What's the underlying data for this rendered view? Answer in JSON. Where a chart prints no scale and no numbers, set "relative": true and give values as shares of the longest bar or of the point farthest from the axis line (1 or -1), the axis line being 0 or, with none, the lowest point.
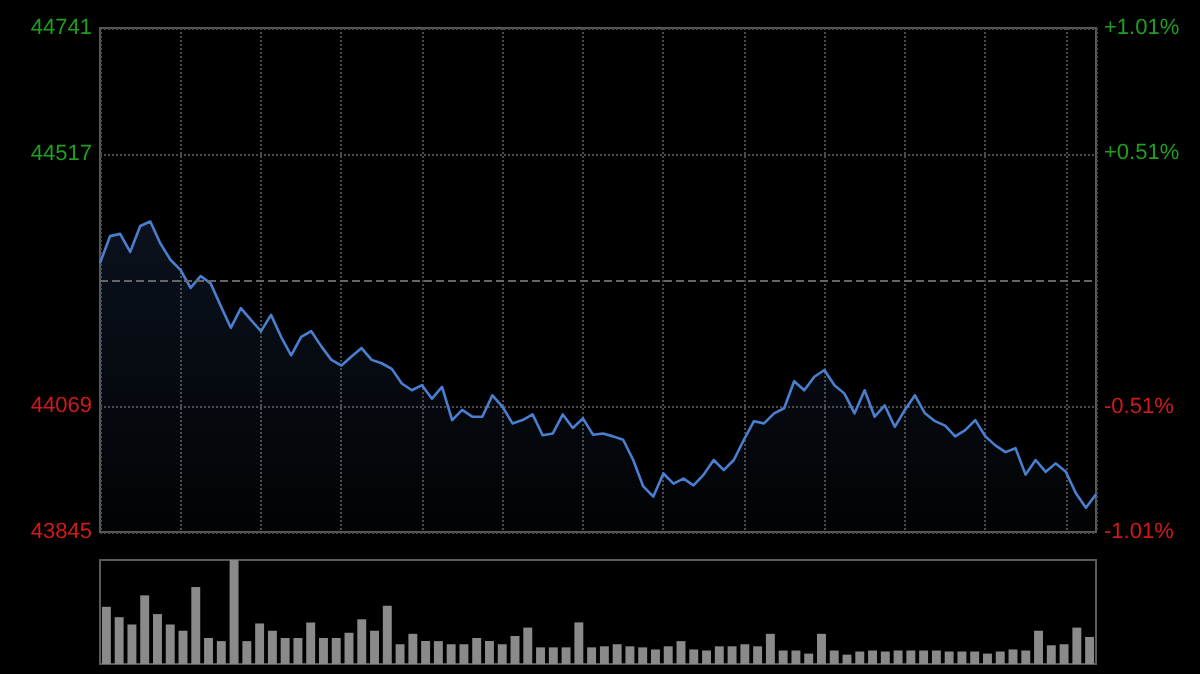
{
  "chart_data": [
    {
      "type": "area",
      "categories": [
        null,
        null,
        null,
        null,
        null,
        null,
        null,
        null,
        null,
        null,
        null,
        null,
        null,
        null,
        null,
        null,
        null,
        null,
        null,
        null,
        null,
        null,
        null,
        null,
        null,
        null,
        null,
        null,
        null,
        null,
        null,
        null,
        null,
        null,
        null,
        null,
        null,
        null,
        null,
        null,
        null,
        null,
        null,
        null,
        null,
        null,
        null,
        null,
        null,
        null,
        null,
        null,
        null,
        null,
        null,
        null,
        null,
        null,
        null,
        null,
        null,
        null,
        null,
        null,
        null,
        null,
        null,
        null,
        null,
        null,
        null,
        null,
        null,
        null,
        null,
        null,
        null,
        null,
        null,
        null,
        null,
        null,
        null,
        null,
        null,
        null,
        null,
        null,
        null,
        null,
        null,
        null,
        null,
        null,
        null,
        null,
        null,
        null,
        null,
        null
      ],
      "series": [
        {
          "color": "#4a7fd0",
          "values": [
            44323,
            44371,
            44375,
            44343,
            44389,
            44397,
            44358,
            44329,
            44311,
            44279,
            44300,
            44287,
            44247,
            44208,
            44243,
            44222,
            44202,
            44231,
            44192,
            44159,
            44192,
            44202,
            44175,
            44151,
            44141,
            44157,
            44172,
            44151,
            44145,
            44135,
            44109,
            44097,
            44106,
            44082,
            44103,
            44044,
            44062,
            44050,
            44050,
            44088,
            44068,
            44038,
            44044,
            44054,
            44017,
            44020,
            44054,
            44030,
            44047,
            44018,
            44020,
            44015,
            44009,
            43973,
            43926,
            43908,
            43949,
            43931,
            43940,
            43928,
            43947,
            43973,
            43955,
            43973,
            44009,
            44042,
            44038,
            44056,
            44065,
            44113,
            44097,
            44121,
            44133,
            44106,
            44091,
            44056,
            44097,
            44050,
            44070,
            44032,
            44062,
            44088,
            44056,
            44042,
            44034,
            44015,
            44026,
            44044,
            44015,
            43999,
            43987,
            43994,
            43947,
            43973,
            43952,
            43967,
            43952,
            43914,
            43888,
            43912
          ]
        }
      ],
      "ylim": [
        43845,
        44741
      ],
      "yticks": [
        43845,
        44069,
        44517,
        44741
      ],
      "y2lim": [
        -1.01,
        1.01
      ],
      "y2ticks": [
        {
          "value": -1.01,
          "label": "-1.01%"
        },
        {
          "value": -0.51,
          "label": "-0.51%"
        },
        {
          "value": 0.51,
          "label": "+0.51%"
        },
        {
          "value": 1.01,
          "label": "+1.01%"
        }
      ],
      "ref_lines": [
        {
          "axis": "y",
          "value": 44293,
          "color": "#666666",
          "line_style": "dashed"
        }
      ],
      "grid": true,
      "tick_labels": "y"
    },
    {
      "type": "bar",
      "relative": true,
      "categories": [
        null,
        null,
        null,
        null,
        null,
        null,
        null,
        null,
        null,
        null,
        null,
        null,
        null,
        null,
        null,
        null,
        null,
        null,
        null,
        null,
        null,
        null,
        null,
        null,
        null,
        null,
        null,
        null,
        null,
        null,
        null,
        null,
        null,
        null,
        null,
        null,
        null,
        null,
        null,
        null,
        null,
        null,
        null,
        null,
        null,
        null,
        null,
        null,
        null,
        null,
        null,
        null,
        null,
        null,
        null,
        null,
        null,
        null,
        null,
        null,
        null,
        null,
        null,
        null,
        null,
        null,
        null,
        null,
        null,
        null,
        null,
        null,
        null,
        null,
        null,
        null,
        null,
        null
      ],
      "values": [
        0.55,
        0.45,
        0.38,
        0.66,
        0.48,
        0.38,
        0.32,
        0.74,
        0.25,
        0.22,
        1,
        0.22,
        0.39,
        0.32,
        0.25,
        0.25,
        0.4,
        0.25,
        0.25,
        0.3,
        0.43,
        0.32,
        0.56,
        0.19,
        0.29,
        0.22,
        0.22,
        0.19,
        0.19,
        0.25,
        0.22,
        0.19,
        0.27,
        0.35,
        0.16,
        0.16,
        0.16,
        0.4,
        0.16,
        0.17,
        0.19,
        0.17,
        0.16,
        0.14,
        0.17,
        0.22,
        0.14,
        0.13,
        0.17,
        0.17,
        0.19,
        0.17,
        0.29,
        0.13,
        0.13,
        0.1,
        0.29,
        0.13,
        0.09,
        0.12,
        0.13,
        0.12,
        0.13,
        0.13,
        0.13,
        0.13,
        0.12,
        0.12,
        0.12,
        0.1,
        0.12,
        0.14,
        0.13,
        0.32,
        0.18,
        0.19,
        0.35,
        0.26
      ],
      "color": "#8a8a8a",
      "tick_labels": false
    }
  ]
}
